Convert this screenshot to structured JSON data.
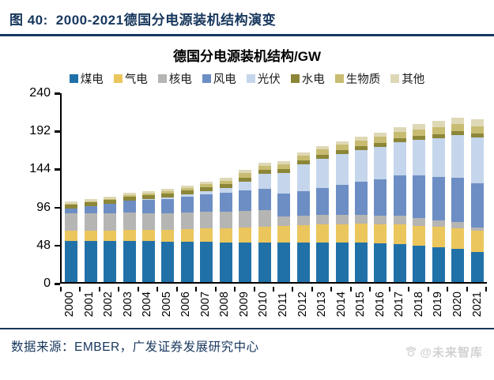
{
  "figure": {
    "label": "图 40:",
    "title": "2000-2021德国分电源装机结构演变"
  },
  "chart": {
    "title": "德国分电源装机结构/GW"
  },
  "footer": {
    "source_label": "数据来源：",
    "source_text": "EMBER，广发证券发展研究中心",
    "watermark": "@未来智库"
  },
  "icons": {
    "watermark_icon": "paw-icon"
  },
  "chart_data": {
    "type": "bar",
    "stacked": true,
    "title": "德国分电源装机结构/GW",
    "unit": "GW",
    "grid": false,
    "legend_position": "top",
    "ylim": [
      0,
      240
    ],
    "yticks": [
      0,
      48,
      96,
      144,
      192,
      240
    ],
    "categories": [
      "2000",
      "2001",
      "2002",
      "2003",
      "2004",
      "2005",
      "2006",
      "2007",
      "2008",
      "2009",
      "2010",
      "2011",
      "2012",
      "2013",
      "2014",
      "2015",
      "2016",
      "2017",
      "2018",
      "2019",
      "2020",
      "2021"
    ],
    "series": [
      {
        "id": "coal",
        "name": "煤电",
        "color": "#2171A9",
        "values": [
          52,
          52,
          52,
          52,
          52,
          51,
          51,
          51,
          50,
          50,
          50,
          50,
          50,
          50,
          50,
          50,
          49,
          48,
          46,
          44,
          42,
          38
        ]
      },
      {
        "id": "gas",
        "name": "气电",
        "color": "#EBC65D",
        "values": [
          13,
          13,
          13,
          14,
          14,
          15,
          16,
          17,
          18,
          19,
          20,
          21,
          22,
          23,
          23,
          24,
          24,
          25,
          25,
          26,
          26,
          27
        ]
      },
      {
        "id": "nuclear",
        "name": "核电",
        "color": "#B5B5B4",
        "values": [
          22,
          22,
          22,
          22,
          21,
          21,
          21,
          21,
          21,
          21,
          21,
          12,
          12,
          12,
          12,
          11,
          11,
          11,
          10,
          8,
          8,
          4
        ]
      },
      {
        "id": "wind",
        "name": "风电",
        "color": "#6D8EC4",
        "values": [
          6,
          9,
          12,
          15,
          17,
          18,
          20,
          22,
          24,
          26,
          27,
          29,
          31,
          34,
          38,
          42,
          45,
          50,
          53,
          54,
          55,
          56
        ]
      },
      {
        "id": "solar",
        "name": "光伏",
        "color": "#C5D6EC",
        "values": [
          0,
          0,
          0,
          0,
          1,
          2,
          3,
          4,
          6,
          11,
          18,
          25,
          33,
          36,
          38,
          39,
          41,
          42,
          45,
          49,
          54,
          57
        ]
      },
      {
        "id": "hydro",
        "name": "水电",
        "color": "#8C8638",
        "values": [
          5,
          5,
          5,
          5,
          5,
          5,
          5,
          5,
          5,
          5,
          5,
          5,
          5,
          5,
          5,
          5,
          5,
          5,
          5,
          5,
          5,
          5
        ]
      },
      {
        "id": "biomass",
        "name": "生物质",
        "color": "#C8BC72",
        "values": [
          1,
          1,
          1,
          2,
          2,
          3,
          3,
          4,
          4,
          5,
          5,
          6,
          6,
          7,
          7,
          7,
          8,
          8,
          8,
          9,
          9,
          9
        ]
      },
      {
        "id": "other",
        "name": "其他",
        "color": "#DED8B6",
        "values": [
          3,
          3,
          3,
          3,
          3,
          3,
          3,
          3,
          4,
          4,
          4,
          4,
          4,
          4,
          4,
          5,
          5,
          6,
          7,
          8,
          8,
          9
        ]
      }
    ]
  }
}
